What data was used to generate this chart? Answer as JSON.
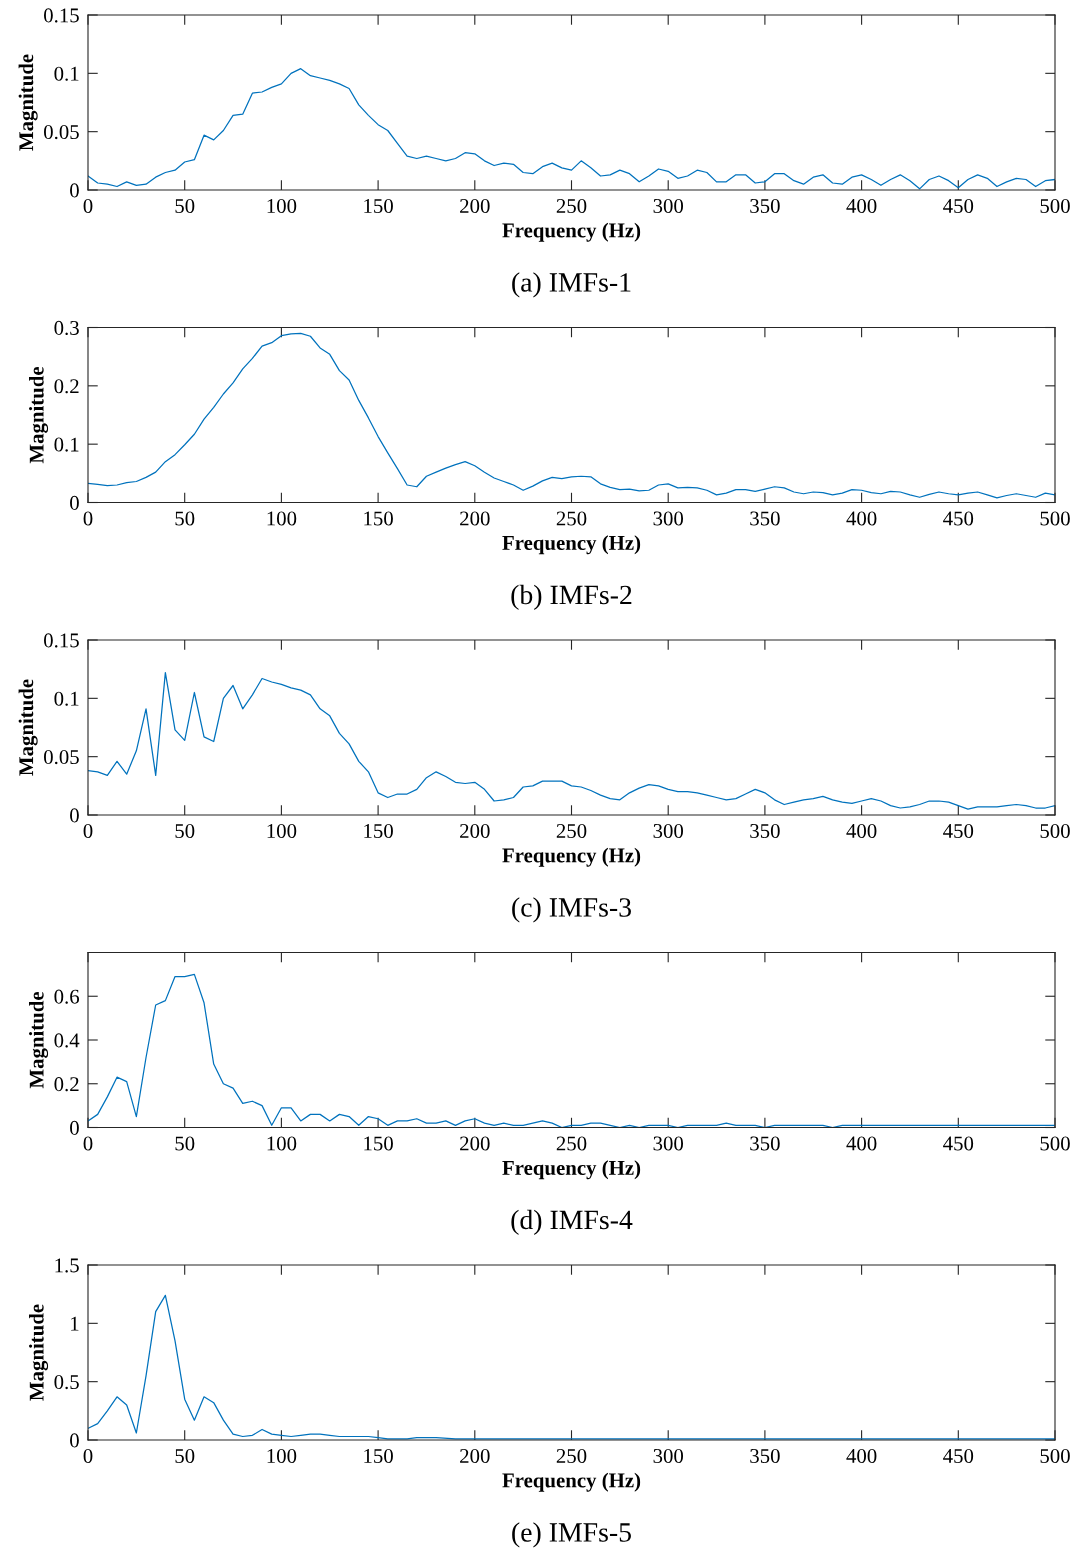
{
  "chart_data": [
    {
      "type": "line",
      "title": "(a) IMFs-1",
      "xlabel": "Frequency (Hz)",
      "ylabel": "Magnitude",
      "xlim": [
        0,
        500
      ],
      "xticks": [
        0,
        50,
        100,
        150,
        200,
        250,
        300,
        350,
        400,
        450,
        500
      ],
      "ylim": [
        0,
        0.15
      ],
      "yticks": [
        0,
        0.05,
        0.1,
        0.15
      ],
      "x": [
        0,
        5,
        10,
        15,
        20,
        25,
        30,
        35,
        40,
        45,
        50,
        55,
        60,
        65,
        70,
        75,
        80,
        85,
        90,
        95,
        100,
        105,
        110,
        115,
        120,
        125,
        130,
        135,
        140,
        145,
        150,
        155,
        160,
        165,
        170,
        175,
        180,
        185,
        190,
        195,
        200,
        205,
        210,
        215,
        220,
        225,
        230,
        235,
        240,
        245,
        250,
        255,
        260,
        265,
        270,
        275,
        280,
        285,
        290,
        295,
        300,
        305,
        310,
        315,
        320,
        325,
        330,
        335,
        340,
        345,
        350,
        355,
        360,
        365,
        370,
        375,
        380,
        385,
        390,
        395,
        400,
        405,
        410,
        415,
        420,
        425,
        430,
        435,
        440,
        445,
        450,
        455,
        460,
        465,
        470,
        475,
        480,
        485,
        490,
        495,
        500
      ],
      "series": [
        {
          "color": "#0072bd",
          "values": [
            0.012,
            0.006,
            0.005,
            0.003,
            0.007,
            0.004,
            0.005,
            0.011,
            0.015,
            0.017,
            0.024,
            0.026,
            0.047,
            0.043,
            0.051,
            0.064,
            0.065,
            0.083,
            0.084,
            0.088,
            0.091,
            0.1,
            0.104,
            0.098,
            0.096,
            0.094,
            0.091,
            0.087,
            0.073,
            0.064,
            0.056,
            0.051,
            0.04,
            0.029,
            0.027,
            0.029,
            0.027,
            0.025,
            0.027,
            0.032,
            0.031,
            0.025,
            0.021,
            0.023,
            0.022,
            0.015,
            0.014,
            0.02,
            0.023,
            0.019,
            0.017,
            0.025,
            0.019,
            0.012,
            0.013,
            0.017,
            0.014,
            0.007,
            0.012,
            0.018,
            0.016,
            0.01,
            0.012,
            0.017,
            0.015,
            0.007,
            0.007,
            0.013,
            0.013,
            0.006,
            0.007,
            0.014,
            0.014,
            0.008,
            0.005,
            0.011,
            0.013,
            0.006,
            0.005,
            0.011,
            0.013,
            0.009,
            0.004,
            0.009,
            0.013,
            0.008,
            0.001,
            0.009,
            0.012,
            0.008,
            0.002,
            0.009,
            0.013,
            0.01,
            0.003,
            0.007,
            0.01,
            0.009,
            0.003,
            0.008,
            0.009
          ]
        }
      ]
    },
    {
      "type": "line",
      "title": "(b) IMFs-2",
      "xlabel": "Frequency (Hz)",
      "ylabel": "Magnitude",
      "xlim": [
        0,
        500
      ],
      "xticks": [
        0,
        50,
        100,
        150,
        200,
        250,
        300,
        350,
        400,
        450,
        500
      ],
      "ylim": [
        0,
        0.3
      ],
      "yticks": [
        0,
        0.1,
        0.2,
        0.3
      ],
      "x": [
        0,
        5,
        10,
        15,
        20,
        25,
        30,
        35,
        40,
        45,
        50,
        55,
        60,
        65,
        70,
        75,
        80,
        85,
        90,
        95,
        100,
        105,
        110,
        115,
        120,
        125,
        130,
        135,
        140,
        145,
        150,
        155,
        160,
        165,
        170,
        175,
        180,
        185,
        190,
        195,
        200,
        205,
        210,
        215,
        220,
        225,
        230,
        235,
        240,
        245,
        250,
        255,
        260,
        265,
        270,
        275,
        280,
        285,
        290,
        295,
        300,
        305,
        310,
        315,
        320,
        325,
        330,
        335,
        340,
        345,
        350,
        355,
        360,
        365,
        370,
        375,
        380,
        385,
        390,
        395,
        400,
        405,
        410,
        415,
        420,
        425,
        430,
        435,
        440,
        445,
        450,
        455,
        460,
        465,
        470,
        475,
        480,
        485,
        490,
        495,
        500
      ],
      "series": [
        {
          "color": "#0072bd",
          "values": [
            0.033,
            0.031,
            0.029,
            0.03,
            0.034,
            0.036,
            0.043,
            0.052,
            0.07,
            0.082,
            0.099,
            0.117,
            0.143,
            0.163,
            0.186,
            0.205,
            0.229,
            0.247,
            0.268,
            0.274,
            0.286,
            0.289,
            0.29,
            0.285,
            0.265,
            0.254,
            0.226,
            0.21,
            0.175,
            0.145,
            0.113,
            0.085,
            0.058,
            0.03,
            0.027,
            0.045,
            0.052,
            0.059,
            0.065,
            0.07,
            0.063,
            0.052,
            0.042,
            0.036,
            0.03,
            0.021,
            0.028,
            0.037,
            0.043,
            0.041,
            0.044,
            0.045,
            0.044,
            0.032,
            0.026,
            0.022,
            0.023,
            0.02,
            0.021,
            0.03,
            0.032,
            0.025,
            0.026,
            0.025,
            0.021,
            0.013,
            0.016,
            0.022,
            0.022,
            0.019,
            0.023,
            0.027,
            0.025,
            0.018,
            0.015,
            0.018,
            0.017,
            0.013,
            0.016,
            0.022,
            0.021,
            0.017,
            0.015,
            0.019,
            0.018,
            0.013,
            0.009,
            0.014,
            0.018,
            0.015,
            0.013,
            0.016,
            0.018,
            0.013,
            0.008,
            0.012,
            0.015,
            0.012,
            0.009,
            0.016,
            0.013
          ]
        }
      ]
    },
    {
      "type": "line",
      "title": "(c) IMFs-3",
      "xlabel": "Frequency (Hz)",
      "ylabel": "Magnitude",
      "xlim": [
        0,
        500
      ],
      "xticks": [
        0,
        50,
        100,
        150,
        200,
        250,
        300,
        350,
        400,
        450,
        500
      ],
      "ylim": [
        0,
        0.15
      ],
      "yticks": [
        0,
        0.05,
        0.1,
        0.15
      ],
      "x": [
        0,
        5,
        10,
        15,
        20,
        25,
        30,
        35,
        40,
        45,
        50,
        55,
        60,
        65,
        70,
        75,
        80,
        85,
        90,
        95,
        100,
        105,
        110,
        115,
        120,
        125,
        130,
        135,
        140,
        145,
        150,
        155,
        160,
        165,
        170,
        175,
        180,
        185,
        190,
        195,
        200,
        205,
        210,
        215,
        220,
        225,
        230,
        235,
        240,
        245,
        250,
        255,
        260,
        265,
        270,
        275,
        280,
        285,
        290,
        295,
        300,
        305,
        310,
        315,
        320,
        325,
        330,
        335,
        340,
        345,
        350,
        355,
        360,
        365,
        370,
        375,
        380,
        385,
        390,
        395,
        400,
        405,
        410,
        415,
        420,
        425,
        430,
        435,
        440,
        445,
        450,
        455,
        460,
        465,
        470,
        475,
        480,
        485,
        490,
        495,
        500
      ],
      "series": [
        {
          "color": "#0072bd",
          "values": [
            0.038,
            0.037,
            0.034,
            0.046,
            0.035,
            0.055,
            0.091,
            0.034,
            0.122,
            0.073,
            0.064,
            0.105,
            0.067,
            0.063,
            0.1,
            0.111,
            0.091,
            0.103,
            0.117,
            0.114,
            0.112,
            0.109,
            0.107,
            0.103,
            0.091,
            0.085,
            0.07,
            0.061,
            0.046,
            0.037,
            0.019,
            0.015,
            0.018,
            0.018,
            0.022,
            0.032,
            0.037,
            0.033,
            0.028,
            0.027,
            0.028,
            0.022,
            0.012,
            0.013,
            0.015,
            0.024,
            0.025,
            0.029,
            0.029,
            0.029,
            0.025,
            0.024,
            0.021,
            0.017,
            0.014,
            0.013,
            0.019,
            0.023,
            0.026,
            0.025,
            0.022,
            0.02,
            0.02,
            0.019,
            0.017,
            0.015,
            0.013,
            0.014,
            0.018,
            0.022,
            0.019,
            0.013,
            0.009,
            0.011,
            0.013,
            0.014,
            0.016,
            0.013,
            0.011,
            0.01,
            0.012,
            0.014,
            0.012,
            0.008,
            0.006,
            0.007,
            0.009,
            0.012,
            0.012,
            0.011,
            0.008,
            0.005,
            0.007,
            0.007,
            0.007,
            0.008,
            0.009,
            0.008,
            0.006,
            0.006,
            0.008
          ]
        }
      ]
    },
    {
      "type": "line",
      "title": "(d) IMFs-4",
      "xlabel": "Frequency (Hz)",
      "ylabel": "Magnitude",
      "xlim": [
        0,
        500
      ],
      "xticks": [
        0,
        50,
        100,
        150,
        200,
        250,
        300,
        350,
        400,
        450,
        500
      ],
      "ylim": [
        0,
        0.8
      ],
      "yticks": [
        0,
        0.2,
        0.4,
        0.6
      ],
      "x": [
        0,
        5,
        10,
        15,
        20,
        25,
        30,
        35,
        40,
        45,
        50,
        55,
        60,
        65,
        70,
        75,
        80,
        85,
        90,
        95,
        100,
        105,
        110,
        115,
        120,
        125,
        130,
        135,
        140,
        145,
        150,
        155,
        160,
        165,
        170,
        175,
        180,
        185,
        190,
        195,
        200,
        205,
        210,
        215,
        220,
        225,
        230,
        235,
        240,
        245,
        250,
        255,
        260,
        265,
        270,
        275,
        280,
        285,
        290,
        295,
        300,
        305,
        310,
        315,
        320,
        325,
        330,
        335,
        340,
        345,
        350,
        355,
        360,
        365,
        370,
        375,
        380,
        385,
        390,
        395,
        400,
        405,
        410,
        415,
        420,
        425,
        430,
        435,
        440,
        445,
        450,
        455,
        460,
        465,
        470,
        475,
        480,
        485,
        490,
        495,
        500
      ],
      "series": [
        {
          "color": "#0072bd",
          "values": [
            0.03,
            0.06,
            0.14,
            0.23,
            0.21,
            0.05,
            0.32,
            0.56,
            0.58,
            0.69,
            0.69,
            0.7,
            0.57,
            0.29,
            0.2,
            0.18,
            0.11,
            0.12,
            0.1,
            0.01,
            0.09,
            0.09,
            0.03,
            0.06,
            0.06,
            0.03,
            0.06,
            0.05,
            0.01,
            0.05,
            0.04,
            0.01,
            0.03,
            0.03,
            0.04,
            0.02,
            0.02,
            0.03,
            0.01,
            0.03,
            0.04,
            0.02,
            0.01,
            0.02,
            0.01,
            0.01,
            0.02,
            0.03,
            0.02,
            0.0,
            0.01,
            0.01,
            0.02,
            0.02,
            0.01,
            0.0,
            0.01,
            0.0,
            0.01,
            0.01,
            0.01,
            0.0,
            0.01,
            0.01,
            0.01,
            0.01,
            0.02,
            0.01,
            0.01,
            0.01,
            0.0,
            0.01,
            0.01,
            0.01,
            0.01,
            0.01,
            0.01,
            0.0,
            0.01,
            0.01,
            0.01,
            0.01,
            0.01,
            0.01,
            0.01,
            0.01,
            0.01,
            0.01,
            0.01,
            0.01,
            0.01,
            0.01,
            0.01,
            0.01,
            0.01,
            0.01,
            0.01,
            0.01,
            0.01,
            0.01,
            0.01
          ]
        }
      ]
    },
    {
      "type": "line",
      "title": "(e) IMFs-5",
      "xlabel": "Frequency (Hz)",
      "ylabel": "Magnitude",
      "xlim": [
        0,
        500
      ],
      "xticks": [
        0,
        50,
        100,
        150,
        200,
        250,
        300,
        350,
        400,
        450,
        500
      ],
      "ylim": [
        0,
        1.5
      ],
      "yticks": [
        0,
        0.5,
        1,
        1.5
      ],
      "x": [
        0,
        5,
        10,
        15,
        20,
        25,
        30,
        35,
        40,
        45,
        50,
        55,
        60,
        65,
        70,
        75,
        80,
        85,
        90,
        95,
        100,
        105,
        110,
        115,
        120,
        125,
        130,
        135,
        140,
        145,
        150,
        155,
        160,
        165,
        170,
        175,
        180,
        190,
        200,
        220,
        240,
        260,
        280,
        300,
        320,
        350,
        400,
        450,
        500
      ],
      "series": [
        {
          "color": "#0072bd",
          "values": [
            0.1,
            0.14,
            0.25,
            0.37,
            0.3,
            0.06,
            0.55,
            1.1,
            1.24,
            0.85,
            0.35,
            0.17,
            0.37,
            0.32,
            0.17,
            0.05,
            0.03,
            0.04,
            0.09,
            0.05,
            0.04,
            0.03,
            0.04,
            0.05,
            0.05,
            0.04,
            0.03,
            0.03,
            0.03,
            0.03,
            0.02,
            0.01,
            0.01,
            0.01,
            0.02,
            0.02,
            0.02,
            0.01,
            0.01,
            0.01,
            0.01,
            0.01,
            0.01,
            0.01,
            0.01,
            0.01,
            0.01,
            0.01,
            0.01
          ]
        }
      ]
    }
  ]
}
